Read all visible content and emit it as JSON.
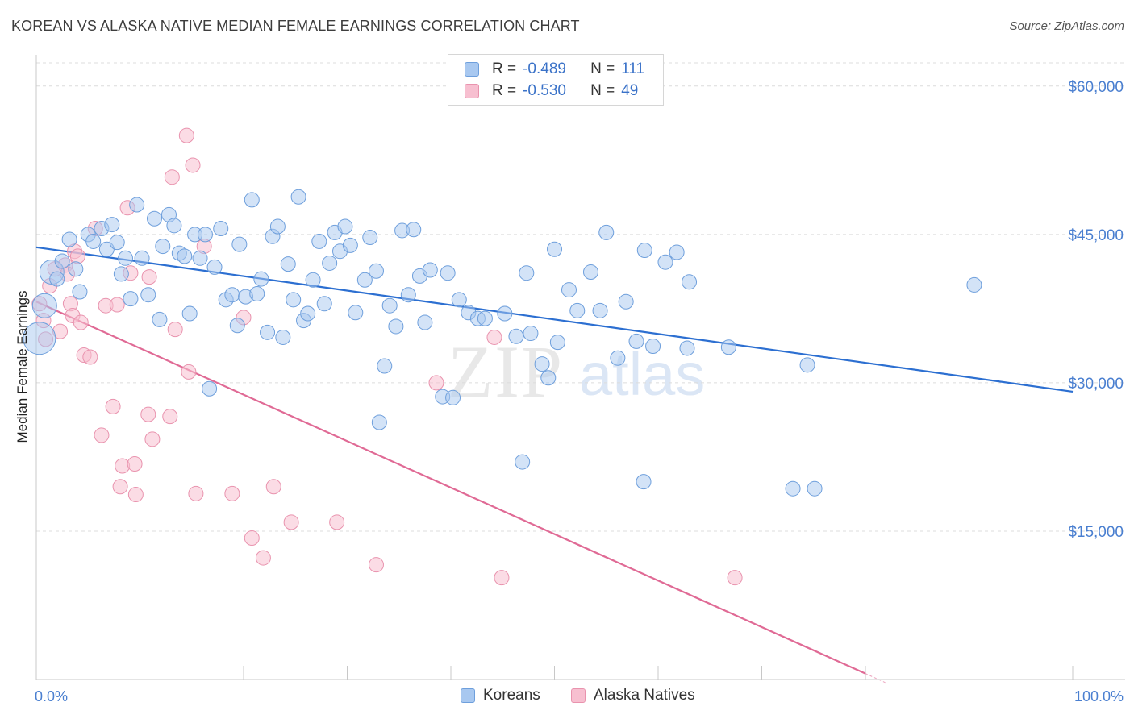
{
  "title": "KOREAN VS ALASKA NATIVE MEDIAN FEMALE EARNINGS CORRELATION CHART",
  "source": "Source: ZipAtlas.com",
  "legend": {
    "rows": [
      {
        "r_label": "R =",
        "r_value": "-0.489",
        "n_label": "N =",
        "n_value": "111"
      },
      {
        "r_label": "R =",
        "r_value": "-0.530",
        "n_label": "N =",
        "n_value": "49"
      }
    ]
  },
  "bottom_legend": [
    "Koreans",
    "Alaska Natives"
  ],
  "watermark": {
    "zip": "ZIP",
    "atlas": "atlas"
  },
  "colors": {
    "koreans_fill": "#a8c8f0",
    "koreans_stroke": "#6e9fdc",
    "koreans_line": "#2c6fd1",
    "natives_fill": "#f7bfd0",
    "natives_stroke": "#e993ae",
    "natives_line": "#e06a95",
    "grid": "#dcdcdc",
    "tick_text": "#4a7fd0"
  },
  "chart_data": {
    "type": "scatter",
    "title": "KOREAN VS ALASKA NATIVE MEDIAN FEMALE EARNINGS CORRELATION CHART",
    "xlabel": "",
    "ylabel": "Median Female Earnings",
    "xlim": [
      0,
      100
    ],
    "ylim": [
      0,
      63000
    ],
    "x_tick_labels": [
      "0.0%",
      "100.0%"
    ],
    "y_ticks": [
      15000,
      30000,
      45000,
      60000
    ],
    "y_tick_labels": [
      "$15,000",
      "$30,000",
      "$45,000",
      "$60,000"
    ],
    "series": [
      {
        "name": "Koreans",
        "R": -0.489,
        "N": 111,
        "trend": {
          "x": [
            0,
            100
          ],
          "y": [
            43700,
            29100
          ]
        },
        "points": [
          {
            "x": 0.3,
            "y": 34500,
            "s": 3
          },
          {
            "x": 0.8,
            "y": 37800,
            "s": 2
          },
          {
            "x": 1.5,
            "y": 41200,
            "s": 2
          },
          {
            "x": 2.0,
            "y": 40500,
            "s": 1
          },
          {
            "x": 2.5,
            "y": 42300,
            "s": 1
          },
          {
            "x": 3.2,
            "y": 44500,
            "s": 1
          },
          {
            "x": 3.8,
            "y": 41500,
            "s": 1
          },
          {
            "x": 4.2,
            "y": 39200,
            "s": 1
          },
          {
            "x": 5.0,
            "y": 45000,
            "s": 1
          },
          {
            "x": 5.5,
            "y": 44300,
            "s": 1
          },
          {
            "x": 6.3,
            "y": 45600,
            "s": 1
          },
          {
            "x": 6.8,
            "y": 43500,
            "s": 1
          },
          {
            "x": 7.3,
            "y": 46000,
            "s": 1
          },
          {
            "x": 7.8,
            "y": 44200,
            "s": 1
          },
          {
            "x": 8.2,
            "y": 41000,
            "s": 1
          },
          {
            "x": 8.6,
            "y": 42600,
            "s": 1
          },
          {
            "x": 9.1,
            "y": 38500,
            "s": 1
          },
          {
            "x": 9.7,
            "y": 48000,
            "s": 1
          },
          {
            "x": 10.2,
            "y": 42600,
            "s": 1
          },
          {
            "x": 10.8,
            "y": 38900,
            "s": 1
          },
          {
            "x": 11.4,
            "y": 46600,
            "s": 1
          },
          {
            "x": 11.9,
            "y": 36400,
            "s": 1
          },
          {
            "x": 12.2,
            "y": 43800,
            "s": 1
          },
          {
            "x": 12.8,
            "y": 47000,
            "s": 1
          },
          {
            "x": 13.3,
            "y": 45900,
            "s": 1
          },
          {
            "x": 13.8,
            "y": 43100,
            "s": 1
          },
          {
            "x": 14.3,
            "y": 42800,
            "s": 1
          },
          {
            "x": 14.8,
            "y": 37000,
            "s": 1
          },
          {
            "x": 15.3,
            "y": 45000,
            "s": 1
          },
          {
            "x": 15.8,
            "y": 42600,
            "s": 1
          },
          {
            "x": 16.3,
            "y": 45000,
            "s": 1
          },
          {
            "x": 16.7,
            "y": 29400,
            "s": 1
          },
          {
            "x": 17.2,
            "y": 41700,
            "s": 1
          },
          {
            "x": 17.8,
            "y": 45600,
            "s": 1
          },
          {
            "x": 18.3,
            "y": 38400,
            "s": 1
          },
          {
            "x": 18.9,
            "y": 38900,
            "s": 1
          },
          {
            "x": 19.4,
            "y": 35800,
            "s": 1
          },
          {
            "x": 19.6,
            "y": 44000,
            "s": 1
          },
          {
            "x": 20.2,
            "y": 38700,
            "s": 1
          },
          {
            "x": 20.8,
            "y": 48500,
            "s": 1
          },
          {
            "x": 21.3,
            "y": 39000,
            "s": 1
          },
          {
            "x": 21.7,
            "y": 40500,
            "s": 1
          },
          {
            "x": 22.3,
            "y": 35100,
            "s": 1
          },
          {
            "x": 22.8,
            "y": 44800,
            "s": 1
          },
          {
            "x": 23.3,
            "y": 45800,
            "s": 1
          },
          {
            "x": 23.8,
            "y": 34600,
            "s": 1
          },
          {
            "x": 24.3,
            "y": 42000,
            "s": 1
          },
          {
            "x": 24.8,
            "y": 38400,
            "s": 1
          },
          {
            "x": 25.3,
            "y": 48800,
            "s": 1
          },
          {
            "x": 25.8,
            "y": 36300,
            "s": 1
          },
          {
            "x": 26.2,
            "y": 37000,
            "s": 1
          },
          {
            "x": 26.7,
            "y": 40400,
            "s": 1
          },
          {
            "x": 27.3,
            "y": 44300,
            "s": 1
          },
          {
            "x": 27.8,
            "y": 38000,
            "s": 1
          },
          {
            "x": 28.3,
            "y": 42100,
            "s": 1
          },
          {
            "x": 28.8,
            "y": 45200,
            "s": 1
          },
          {
            "x": 29.3,
            "y": 43300,
            "s": 1
          },
          {
            "x": 29.8,
            "y": 45800,
            "s": 1
          },
          {
            "x": 30.3,
            "y": 43900,
            "s": 1
          },
          {
            "x": 30.8,
            "y": 37100,
            "s": 1
          },
          {
            "x": 31.7,
            "y": 40400,
            "s": 1
          },
          {
            "x": 32.2,
            "y": 44700,
            "s": 1
          },
          {
            "x": 32.8,
            "y": 41300,
            "s": 1
          },
          {
            "x": 33.6,
            "y": 31700,
            "s": 1
          },
          {
            "x": 34.1,
            "y": 37800,
            "s": 1
          },
          {
            "x": 34.7,
            "y": 35700,
            "s": 1
          },
          {
            "x": 35.3,
            "y": 45400,
            "s": 1
          },
          {
            "x": 35.9,
            "y": 38900,
            "s": 1
          },
          {
            "x": 36.4,
            "y": 45500,
            "s": 1
          },
          {
            "x": 33.1,
            "y": 26000,
            "s": 1
          },
          {
            "x": 37.0,
            "y": 40800,
            "s": 1
          },
          {
            "x": 37.5,
            "y": 36100,
            "s": 1
          },
          {
            "x": 38.0,
            "y": 41400,
            "s": 1
          },
          {
            "x": 39.2,
            "y": 28600,
            "s": 1
          },
          {
            "x": 39.7,
            "y": 41100,
            "s": 1
          },
          {
            "x": 40.2,
            "y": 28500,
            "s": 1
          },
          {
            "x": 40.8,
            "y": 38400,
            "s": 1
          },
          {
            "x": 41.7,
            "y": 37100,
            "s": 1
          },
          {
            "x": 42.6,
            "y": 36500,
            "s": 1
          },
          {
            "x": 43.3,
            "y": 36500,
            "s": 1
          },
          {
            "x": 45.2,
            "y": 37000,
            "s": 1
          },
          {
            "x": 46.3,
            "y": 34700,
            "s": 1
          },
          {
            "x": 47.3,
            "y": 41100,
            "s": 1
          },
          {
            "x": 47.7,
            "y": 35000,
            "s": 1
          },
          {
            "x": 48.8,
            "y": 31900,
            "s": 1
          },
          {
            "x": 50.3,
            "y": 34100,
            "s": 1
          },
          {
            "x": 46.9,
            "y": 22000,
            "s": 1
          },
          {
            "x": 49.4,
            "y": 30500,
            "s": 1
          },
          {
            "x": 50.0,
            "y": 43500,
            "s": 1
          },
          {
            "x": 51.4,
            "y": 39400,
            "s": 1
          },
          {
            "x": 52.2,
            "y": 37300,
            "s": 1
          },
          {
            "x": 53.5,
            "y": 41200,
            "s": 1
          },
          {
            "x": 54.4,
            "y": 37300,
            "s": 1
          },
          {
            "x": 55.0,
            "y": 45200,
            "s": 1
          },
          {
            "x": 56.1,
            "y": 32500,
            "s": 1
          },
          {
            "x": 56.9,
            "y": 38200,
            "s": 1
          },
          {
            "x": 57.9,
            "y": 34200,
            "s": 1
          },
          {
            "x": 58.7,
            "y": 43400,
            "s": 1
          },
          {
            "x": 59.5,
            "y": 33700,
            "s": 1
          },
          {
            "x": 58.6,
            "y": 20000,
            "s": 1
          },
          {
            "x": 60.7,
            "y": 42200,
            "s": 1
          },
          {
            "x": 61.8,
            "y": 43200,
            "s": 1
          },
          {
            "x": 62.8,
            "y": 33500,
            "s": 1
          },
          {
            "x": 63.0,
            "y": 40200,
            "s": 1
          },
          {
            "x": 66.8,
            "y": 33600,
            "s": 1
          },
          {
            "x": 74.4,
            "y": 31800,
            "s": 1
          },
          {
            "x": 73.0,
            "y": 19300,
            "s": 1
          },
          {
            "x": 75.1,
            "y": 19300,
            "s": 1
          },
          {
            "x": 90.5,
            "y": 39900,
            "s": 1
          }
        ]
      },
      {
        "name": "Alaska Natives",
        "R": -0.53,
        "N": 49,
        "trend": {
          "x": [
            0,
            80
          ],
          "y": [
            38200,
            600
          ]
        },
        "points": [
          {
            "x": 0.3,
            "y": 38000,
            "s": 1
          },
          {
            "x": 0.7,
            "y": 36300,
            "s": 1
          },
          {
            "x": 0.9,
            "y": 34400,
            "s": 1
          },
          {
            "x": 1.3,
            "y": 39800,
            "s": 1
          },
          {
            "x": 1.8,
            "y": 41500,
            "s": 1
          },
          {
            "x": 2.3,
            "y": 35200,
            "s": 1
          },
          {
            "x": 2.8,
            "y": 41900,
            "s": 1
          },
          {
            "x": 3.0,
            "y": 41000,
            "s": 1
          },
          {
            "x": 3.3,
            "y": 38000,
            "s": 1
          },
          {
            "x": 3.5,
            "y": 36800,
            "s": 1
          },
          {
            "x": 3.7,
            "y": 43300,
            "s": 1
          },
          {
            "x": 4.0,
            "y": 42800,
            "s": 1
          },
          {
            "x": 4.3,
            "y": 36100,
            "s": 1
          },
          {
            "x": 4.6,
            "y": 32800,
            "s": 1
          },
          {
            "x": 5.2,
            "y": 32600,
            "s": 1
          },
          {
            "x": 5.7,
            "y": 45600,
            "s": 1
          },
          {
            "x": 6.3,
            "y": 24700,
            "s": 1
          },
          {
            "x": 6.7,
            "y": 37800,
            "s": 1
          },
          {
            "x": 7.4,
            "y": 27600,
            "s": 1
          },
          {
            "x": 7.8,
            "y": 37900,
            "s": 1
          },
          {
            "x": 8.1,
            "y": 19500,
            "s": 1
          },
          {
            "x": 8.3,
            "y": 21600,
            "s": 1
          },
          {
            "x": 8.8,
            "y": 47700,
            "s": 1
          },
          {
            "x": 9.1,
            "y": 41100,
            "s": 1
          },
          {
            "x": 9.5,
            "y": 21800,
            "s": 1
          },
          {
            "x": 9.6,
            "y": 18700,
            "s": 1
          },
          {
            "x": 10.8,
            "y": 26800,
            "s": 1
          },
          {
            "x": 10.9,
            "y": 40700,
            "s": 1
          },
          {
            "x": 11.2,
            "y": 24300,
            "s": 1
          },
          {
            "x": 12.9,
            "y": 26600,
            "s": 1
          },
          {
            "x": 13.1,
            "y": 50800,
            "s": 1
          },
          {
            "x": 13.4,
            "y": 35400,
            "s": 1
          },
          {
            "x": 14.5,
            "y": 55000,
            "s": 1
          },
          {
            "x": 14.7,
            "y": 31100,
            "s": 1
          },
          {
            "x": 15.1,
            "y": 52000,
            "s": 1
          },
          {
            "x": 15.4,
            "y": 18800,
            "s": 1
          },
          {
            "x": 16.2,
            "y": 43800,
            "s": 1
          },
          {
            "x": 18.9,
            "y": 18800,
            "s": 1
          },
          {
            "x": 20.0,
            "y": 36600,
            "s": 1
          },
          {
            "x": 20.8,
            "y": 14300,
            "s": 1
          },
          {
            "x": 21.9,
            "y": 12300,
            "s": 1
          },
          {
            "x": 22.9,
            "y": 19500,
            "s": 1
          },
          {
            "x": 24.6,
            "y": 15900,
            "s": 1
          },
          {
            "x": 29.0,
            "y": 15900,
            "s": 1
          },
          {
            "x": 32.8,
            "y": 11600,
            "s": 1
          },
          {
            "x": 38.6,
            "y": 30000,
            "s": 1
          },
          {
            "x": 44.2,
            "y": 34600,
            "s": 1
          },
          {
            "x": 44.9,
            "y": 10300,
            "s": 1
          },
          {
            "x": 67.4,
            "y": 10300,
            "s": 1
          }
        ]
      }
    ]
  }
}
